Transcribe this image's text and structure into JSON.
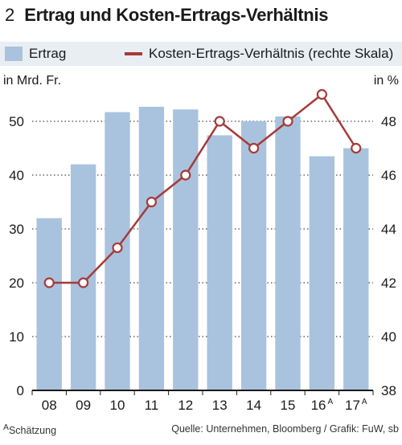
{
  "header": {
    "figure_number": "2",
    "title": "Ertrag und Kosten-Ertrags-Verhältnis"
  },
  "legend": {
    "bar_label": "Ertrag",
    "line_label": "Kosten-Ertrags-Verhältnis (rechte Skala)"
  },
  "units": {
    "left": "in Mrd. Fr.",
    "right": "in %"
  },
  "footer": {
    "footnote_marker": "A",
    "footnote": "Schätzung",
    "source": "Quelle: Unternehmen, Bloomberg / Grafik: FuW, sb"
  },
  "colors": {
    "bar": "#a9c3de",
    "line": "#a63a3a",
    "legend_band": "#e9eef3",
    "grid": "#1a1a1a"
  },
  "chart_data": {
    "type": "bar+line",
    "categories": [
      "08",
      "09",
      "10",
      "11",
      "12",
      "13",
      "14",
      "15",
      "16",
      "17"
    ],
    "category_superscripts": [
      "",
      "",
      "",
      "",
      "",
      "",
      "",
      "",
      "A",
      "A"
    ],
    "series": [
      {
        "name": "Ertrag",
        "type": "bar",
        "axis": "left",
        "values": [
          32,
          42,
          51.7,
          52.7,
          52.2,
          47.4,
          50.0,
          50.9,
          43.5,
          45.0
        ]
      },
      {
        "name": "Kosten-Ertrags-Verhältnis (rechte Skala)",
        "type": "line",
        "axis": "right",
        "values": [
          42.0,
          42.0,
          43.3,
          45.0,
          46.0,
          48.0,
          47.0,
          48.0,
          49.0,
          47.0
        ]
      }
    ],
    "left_axis": {
      "label": "in Mrd. Fr.",
      "min": 0,
      "max": 50,
      "ticks": [
        0,
        10,
        20,
        30,
        40,
        50
      ]
    },
    "right_axis": {
      "label": "in %",
      "min": 38,
      "max": 48,
      "ticks": [
        38,
        40,
        42,
        44,
        46,
        48
      ]
    },
    "grid": "dotted horizontal",
    "legend_placement": "top"
  }
}
